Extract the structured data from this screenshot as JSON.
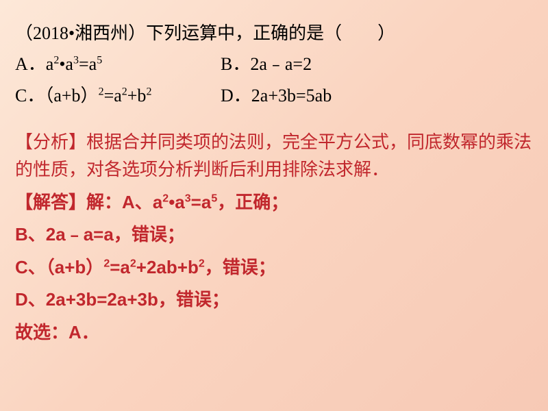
{
  "colors": {
    "bg_gradient_start": "#fde8d8",
    "bg_gradient_mid": "#fad4c0",
    "bg_gradient_end": "#f7c9b5",
    "question_text": "#000000",
    "solution_text": "#c1272d"
  },
  "typography": {
    "question_fontsize": 26,
    "solution_fontsize": 26,
    "sup_fontsize": 16,
    "question_family": "SimSun",
    "solve_family": "SimHei",
    "solve_weight": "bold"
  },
  "question": {
    "stem": "（2018•湘西州）下列运算中，正确的是（　　）",
    "options": {
      "A_prefix": "A．",
      "A_html": "a<sup>2</sup>•a<sup>3</sup>=a<sup>5</sup>",
      "B_prefix": "B．",
      "B_text": "2a﹣a=2",
      "C_prefix": "C．",
      "C_html": "（a+b）<sup>2</sup>=a<sup>2</sup>+b<sup>2</sup>",
      "D_prefix": "D．",
      "D_text": "2a+3b=5ab"
    }
  },
  "solution": {
    "analysis_label": "【分析】",
    "analysis_text": "根据合并同类项的法则，完全平方公式，同底数幂的乘法的性质，对各选项分析判断后利用排除法求解．",
    "solve_label": "【解答】",
    "solve_prefix": "解：",
    "lines": {
      "A": {
        "label": "A、",
        "expr_html": "a<sup>2</sup>•a<sup>3</sup>=a<sup>5</sup>",
        "verdict": "，正确；"
      },
      "B": {
        "label": "B、",
        "expr_text": "2a﹣a=a",
        "verdict": "，错误；"
      },
      "C": {
        "label": "C、",
        "expr_html": "（a+b）<sup>2</sup>=a<sup>2</sup>+2ab+b<sup>2</sup>",
        "verdict": "，错误；"
      },
      "D": {
        "label": "D、",
        "expr_text": "2a+3b=2a+3b",
        "verdict": "，错误；"
      }
    },
    "conclusion": "故选：A．"
  }
}
